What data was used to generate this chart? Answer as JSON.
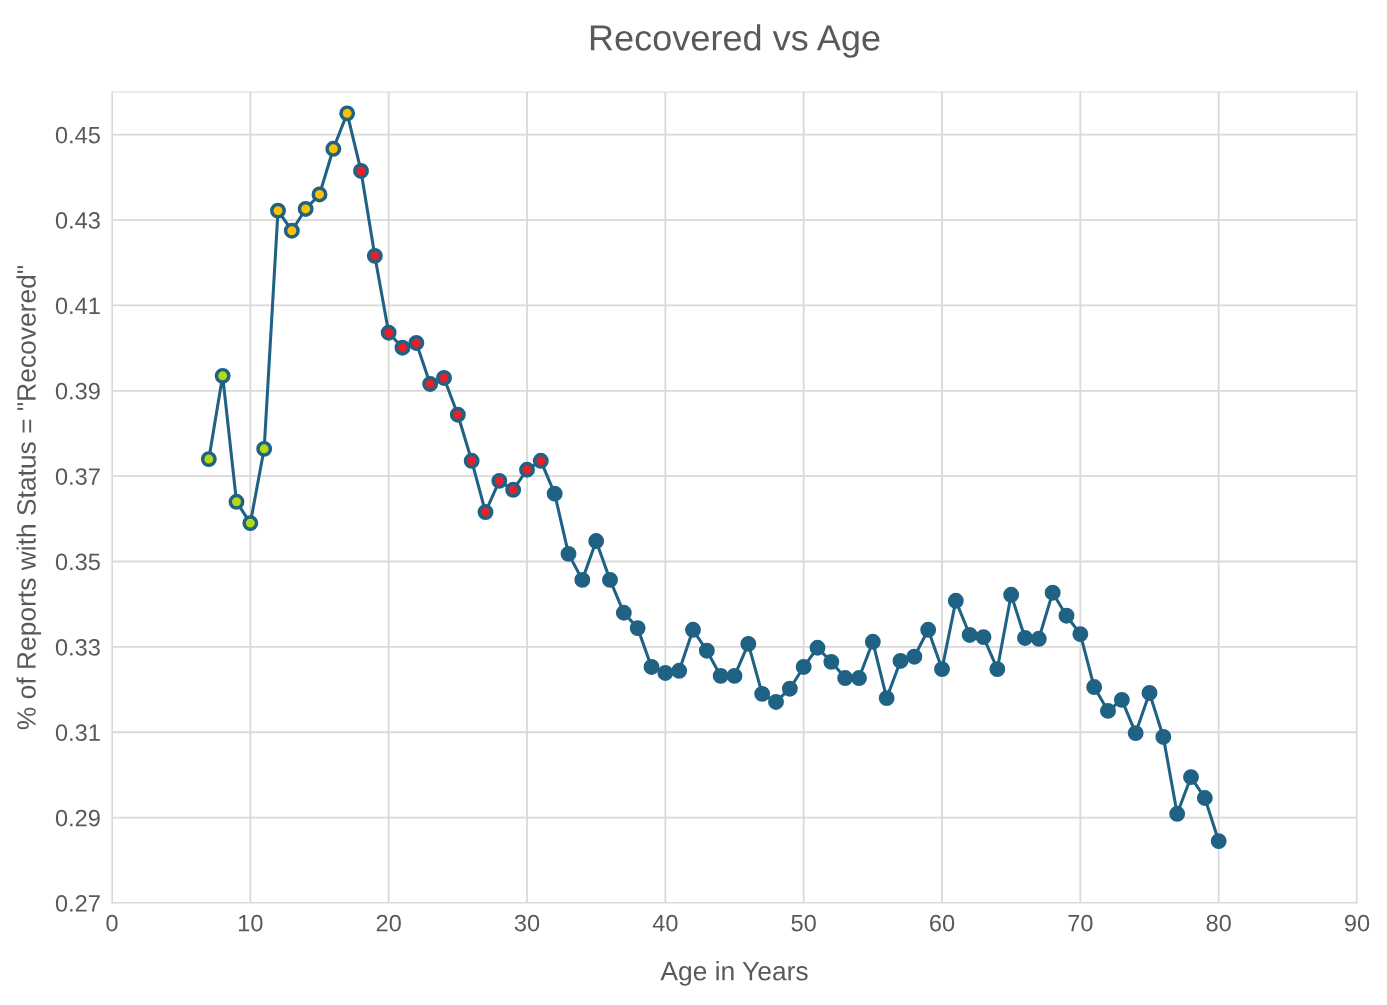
{
  "chart_data": {
    "type": "line",
    "title": "Recovered vs Age",
    "xlabel": "Age in Years",
    "ylabel": "% of Reports with Status = \"Recovered\"",
    "x": [
      7,
      8,
      9,
      10,
      11,
      12,
      13,
      14,
      15,
      16,
      17,
      18,
      19,
      20,
      21,
      22,
      23,
      24,
      25,
      26,
      27,
      28,
      29,
      30,
      31,
      32,
      33,
      34,
      35,
      36,
      37,
      38,
      39,
      40,
      41,
      42,
      43,
      44,
      45,
      46,
      47,
      48,
      49,
      50,
      51,
      52,
      53,
      54,
      55,
      56,
      57,
      58,
      59,
      60,
      61,
      62,
      63,
      64,
      65,
      66,
      67,
      68,
      69,
      70,
      71,
      72,
      73,
      74,
      75,
      76,
      77,
      78,
      79,
      80
    ],
    "series": [
      {
        "color": "#1f6284",
        "values": [
          0.374,
          0.3935,
          0.364,
          0.359,
          0.3764,
          0.4322,
          0.4275,
          0.4326,
          0.436,
          0.4467,
          0.455,
          0.4415,
          0.4216,
          0.4036,
          0.4001,
          0.4012,
          0.3916,
          0.393,
          0.3844,
          0.3736,
          0.3616,
          0.3689,
          0.3668,
          0.3715,
          0.3736,
          0.3659,
          0.3518,
          0.3457,
          0.3548,
          0.3457,
          0.338,
          0.3344,
          0.3253,
          0.3239,
          0.3244,
          0.334,
          0.3291,
          0.3232,
          0.3232,
          0.3307,
          0.319,
          0.3171,
          0.3202,
          0.3253,
          0.3298,
          0.3265,
          0.3227,
          0.3227,
          0.3312,
          0.318,
          0.3267,
          0.3277,
          0.334,
          0.3248,
          0.3408,
          0.3328,
          0.3323,
          0.3248,
          0.3422,
          0.3321,
          0.3319,
          0.3427,
          0.3373,
          0.333,
          0.3206,
          0.315,
          0.3176,
          0.3098,
          0.3192,
          0.3089,
          0.2909,
          0.2995,
          0.2946,
          0.2845
        ],
        "colors": [
          "#b5d916",
          "#b5d916",
          "#b5d916",
          "#b5d916",
          "#b5d916",
          "#ffc000",
          "#ffc000",
          "#ffc000",
          "#ffc000",
          "#ffc000",
          "#ffc000",
          "#e8202a",
          "#e8202a",
          "#e8202a",
          "#e8202a",
          "#e8202a",
          "#e8202a",
          "#e8202a",
          "#e8202a",
          "#e8202a",
          "#e8202a",
          "#e8202a",
          "#e8202a",
          "#e8202a",
          "#e8202a",
          "#1f6284",
          "#1f6284",
          "#1f6284",
          "#1f6284",
          "#1f6284",
          "#1f6284",
          "#1f6284",
          "#1f6284",
          "#1f6284",
          "#1f6284",
          "#1f6284",
          "#1f6284",
          "#1f6284",
          "#1f6284",
          "#1f6284",
          "#1f6284",
          "#1f6284",
          "#1f6284",
          "#1f6284",
          "#1f6284",
          "#1f6284",
          "#1f6284",
          "#1f6284",
          "#1f6284",
          "#1f6284",
          "#1f6284",
          "#1f6284",
          "#1f6284",
          "#1f6284",
          "#1f6284",
          "#1f6284",
          "#1f6284",
          "#1f6284",
          "#1f6284",
          "#1f6284",
          "#1f6284",
          "#1f6284",
          "#1f6284",
          "#1f6284",
          "#1f6284",
          "#1f6284",
          "#1f6284",
          "#1f6284",
          "#1f6284",
          "#1f6284",
          "#1f6284",
          "#1f6284",
          "#1f6284",
          "#1f6284"
        ]
      }
    ],
    "xlim": [
      0,
      90
    ],
    "xticks": [
      0,
      10,
      20,
      30,
      40,
      50,
      60,
      70,
      80,
      90
    ],
    "ylim": [
      0.27,
      0.46
    ],
    "yticks": [
      0.27,
      0.29,
      0.31,
      0.33,
      0.35,
      0.37,
      0.39,
      0.41,
      0.43,
      0.45
    ],
    "grid": true,
    "marker": "circle",
    "line_style": "solid"
  }
}
